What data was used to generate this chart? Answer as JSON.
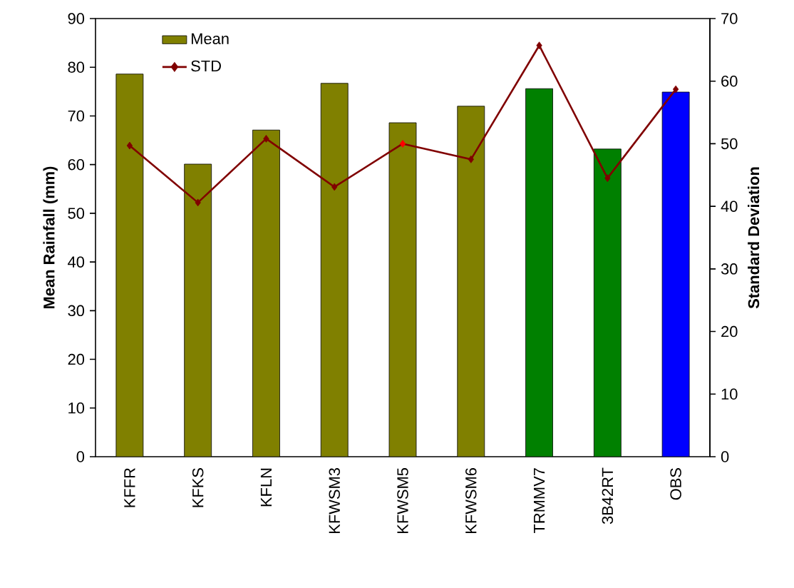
{
  "chart_data": {
    "type": "bar",
    "categories": [
      "KFFR",
      "KFKS",
      "KFLN",
      "KFWSM3",
      "KFWSM5",
      "KFWSM6",
      "TRMMV7",
      "3B42RT",
      "OBS"
    ],
    "ylabel": "Mean Rainfall (mm)",
    "y2label": "Standard Deviation",
    "ylim": [
      0,
      90
    ],
    "yticks": [
      0,
      10,
      20,
      30,
      40,
      50,
      60,
      70,
      80,
      90
    ],
    "y2lim": [
      0,
      70
    ],
    "y2ticks": [
      0,
      10,
      20,
      30,
      40,
      50,
      60,
      70
    ],
    "legend": "top left",
    "marker": "diamond",
    "series": [
      {
        "name": "Mean",
        "color": "#808000",
        "colors": [
          "#808000",
          "#808000",
          "#808000",
          "#808000",
          "#808000",
          "#808000",
          "#008000",
          "#008000",
          "#0000ff"
        ],
        "values": [
          78.6,
          60.1,
          67.1,
          76.7,
          68.6,
          72.0,
          75.6,
          63.2,
          74.9
        ]
      },
      {
        "name": "STD",
        "type": "line",
        "axis": "y2",
        "color": "#800000",
        "colors": [
          "#800000",
          "#800000",
          "#800000",
          "#800000",
          "#ff0000",
          "#800000",
          "#800000",
          "#800000",
          "#800000"
        ],
        "values": [
          49.7,
          40.6,
          50.8,
          43.1,
          50.0,
          47.5,
          65.7,
          44.5,
          58.7
        ]
      }
    ]
  }
}
